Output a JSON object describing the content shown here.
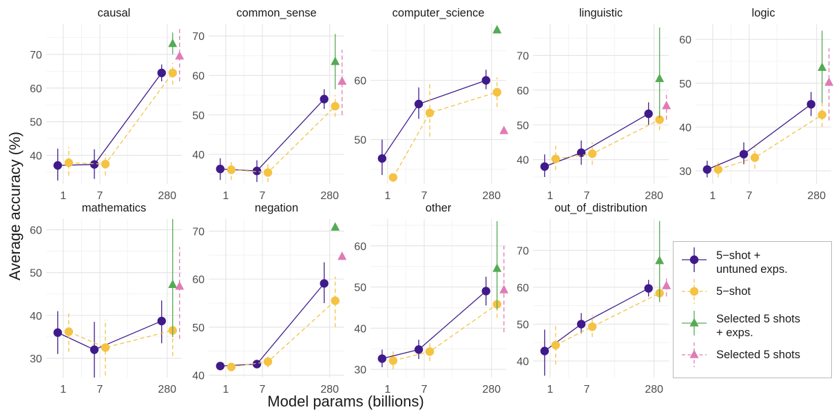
{
  "ylabel": "Average accuracy (%)",
  "xlabel": "Model params (billions)",
  "colors": {
    "five_shot_untuned": "#3f1a8a",
    "five_shot": "#f5c242",
    "selected_exps": "#55aa55",
    "selected": "#e07bb5"
  },
  "legend": {
    "items": [
      {
        "label": "5−shot +\nuntuned exps.",
        "series": "five_shot_untuned"
      },
      {
        "label": "5−shot",
        "series": "five_shot"
      },
      {
        "label": "Selected 5 shots\n+ exps.",
        "series": "selected_exps"
      },
      {
        "label": "Selected 5 shots",
        "series": "selected"
      }
    ]
  },
  "chart_data": [
    {
      "type": "line",
      "title": "causal",
      "categories": [
        "1",
        "7",
        "280"
      ],
      "yticks": [
        40,
        50,
        60,
        70
      ],
      "ylim": [
        31.5,
        79
      ],
      "series": [
        {
          "name": "5−shot + untuned exps.",
          "values": [
            37.0,
            37.3,
            64.5
          ],
          "lower": [
            32.5,
            33.0,
            62.0
          ],
          "upper": [
            42.0,
            41.8,
            67.0
          ]
        },
        {
          "name": "5−shot",
          "values": [
            37.8,
            37.4,
            64.5
          ],
          "lower": [
            34.0,
            34.0,
            61.0
          ],
          "upper": [
            42.5,
            40.5,
            67.5
          ]
        },
        {
          "name": "Selected 5 shots + exps.",
          "values": [
            null,
            null,
            73.2
          ],
          "lower": [
            null,
            null,
            70.0
          ],
          "upper": [
            null,
            null,
            76.5
          ]
        },
        {
          "name": "Selected 5 shots",
          "values": [
            null,
            null,
            69.5
          ],
          "lower": [
            null,
            null,
            62.0
          ],
          "upper": [
            null,
            null,
            78.0
          ]
        }
      ]
    },
    {
      "type": "line",
      "title": "common_sense",
      "categories": [
        "1",
        "7",
        "280"
      ],
      "yticks": [
        40,
        50,
        60,
        70
      ],
      "ylim": [
        32.5,
        73
      ],
      "series": [
        {
          "name": "5−shot + untuned exps.",
          "values": [
            36.3,
            35.8,
            54.0
          ],
          "lower": [
            33.5,
            33.0,
            51.5
          ],
          "upper": [
            39.0,
            38.5,
            56.5
          ]
        },
        {
          "name": "5−shot",
          "values": [
            36.1,
            35.4,
            52.2
          ],
          "lower": [
            33.5,
            33.0,
            49.5
          ],
          "upper": [
            38.8,
            38.0,
            55.0
          ]
        },
        {
          "name": "Selected 5 shots + exps.",
          "values": [
            null,
            null,
            63.5
          ],
          "lower": [
            null,
            null,
            56.5
          ],
          "upper": [
            null,
            null,
            70.5
          ]
        },
        {
          "name": "Selected 5 shots",
          "values": [
            null,
            null,
            58.5
          ],
          "lower": [
            null,
            null,
            50.0
          ],
          "upper": [
            null,
            null,
            66.5
          ]
        }
      ]
    },
    {
      "type": "line",
      "title": "computer_science",
      "categories": [
        "1",
        "7",
        "280"
      ],
      "yticks": [
        50,
        60
      ],
      "ylim": [
        42.5,
        69.5
      ],
      "series": [
        {
          "name": "5−shot + untuned exps.",
          "values": [
            46.8,
            56.0,
            60.0
          ],
          "lower": [
            44.0,
            53.5,
            58.5
          ],
          "upper": [
            50.0,
            58.8,
            61.8
          ]
        },
        {
          "name": "5−shot",
          "values": [
            43.6,
            54.5,
            58.0
          ],
          "lower": [
            43.6,
            50.5,
            55.5
          ],
          "upper": [
            43.6,
            59.5,
            60.5
          ]
        },
        {
          "name": "Selected 5 shots + exps.",
          "values": [
            null,
            null,
            68.5
          ],
          "lower": [
            null,
            null,
            null
          ],
          "upper": [
            null,
            null,
            null
          ]
        },
        {
          "name": "Selected 5 shots",
          "values": [
            null,
            null,
            51.5
          ],
          "lower": [
            null,
            null,
            null
          ],
          "upper": [
            null,
            null,
            null
          ]
        }
      ]
    },
    {
      "type": "line",
      "title": "linguistic",
      "categories": [
        "1",
        "7",
        "280"
      ],
      "yticks": [
        40,
        50,
        60,
        70
      ],
      "ylim": [
        33,
        79
      ],
      "series": [
        {
          "name": "5−shot + untuned exps.",
          "values": [
            38.0,
            42.0,
            53.2
          ],
          "lower": [
            35.0,
            38.5,
            50.0
          ],
          "upper": [
            41.5,
            45.5,
            56.5
          ]
        },
        {
          "name": "5−shot",
          "values": [
            40.2,
            41.7,
            51.5
          ],
          "lower": [
            37.0,
            38.5,
            48.5
          ],
          "upper": [
            44.0,
            45.0,
            54.5
          ]
        },
        {
          "name": "Selected 5 shots + exps.",
          "values": [
            null,
            null,
            63.3
          ],
          "lower": [
            null,
            null,
            52.0
          ],
          "upper": [
            null,
            null,
            78.0
          ]
        },
        {
          "name": "Selected 5 shots",
          "values": [
            null,
            null,
            55.5
          ],
          "lower": [
            null,
            null,
            51.5
          ],
          "upper": [
            null,
            null,
            59.5
          ]
        }
      ]
    },
    {
      "type": "line",
      "title": "logic",
      "categories": [
        "1",
        "7",
        "280"
      ],
      "yticks": [
        30,
        40,
        50,
        60
      ],
      "ylim": [
        27,
        63.5
      ],
      "series": [
        {
          "name": "5−shot + untuned exps.",
          "values": [
            30.3,
            33.8,
            45.2
          ],
          "lower": [
            28.5,
            31.5,
            42.5
          ],
          "upper": [
            32.3,
            36.5,
            48.0
          ]
        },
        {
          "name": "5−shot",
          "values": [
            30.3,
            33.0,
            42.8
          ],
          "lower": [
            28.5,
            30.5,
            40.0
          ],
          "upper": [
            32.0,
            35.5,
            45.5
          ]
        },
        {
          "name": "Selected 5 shots + exps.",
          "values": [
            null,
            null,
            53.6
          ],
          "lower": [
            null,
            null,
            45.5
          ],
          "upper": [
            null,
            null,
            62.0
          ]
        },
        {
          "name": "Selected 5 shots",
          "values": [
            null,
            null,
            50.2
          ],
          "lower": [
            null,
            null,
            41.5
          ],
          "upper": [
            null,
            null,
            58.0
          ]
        }
      ]
    },
    {
      "type": "line",
      "title": "mathematics",
      "categories": [
        "1",
        "7",
        "280"
      ],
      "yticks": [
        30,
        40,
        50,
        60
      ],
      "ylim": [
        25.5,
        62.5
      ],
      "series": [
        {
          "name": "5−shot + untuned exps.",
          "values": [
            36.0,
            32.0,
            38.7
          ],
          "lower": [
            31.0,
            25.5,
            33.5
          ],
          "upper": [
            41.0,
            38.5,
            43.5
          ]
        },
        {
          "name": "5−shot",
          "values": [
            36.2,
            32.5,
            36.5
          ],
          "lower": [
            31.5,
            26.0,
            30.5
          ],
          "upper": [
            41.0,
            39.0,
            42.5
          ]
        },
        {
          "name": "Selected 5 shots + exps.",
          "values": [
            null,
            null,
            47.2
          ],
          "lower": [
            null,
            null,
            35.0
          ],
          "upper": [
            null,
            null,
            62.5
          ]
        },
        {
          "name": "Selected 5 shots",
          "values": [
            null,
            null,
            46.8
          ],
          "lower": [
            null,
            null,
            34.5
          ],
          "upper": [
            null,
            null,
            56.0
          ]
        }
      ]
    },
    {
      "type": "line",
      "title": "negation",
      "categories": [
        "1",
        "7",
        "280"
      ],
      "yticks": [
        40,
        50,
        60,
        70
      ],
      "ylim": [
        39.5,
        72.5
      ],
      "series": [
        {
          "name": "5−shot + untuned exps.",
          "values": [
            41.9,
            42.3,
            59.1
          ],
          "lower": [
            41.2,
            41.6,
            55.0
          ],
          "upper": [
            42.6,
            43.0,
            63.5
          ]
        },
        {
          "name": "5−shot",
          "values": [
            41.7,
            42.8,
            55.5
          ],
          "lower": [
            41.0,
            41.6,
            50.0
          ],
          "upper": [
            42.4,
            44.0,
            60.5
          ]
        },
        {
          "name": "Selected 5 shots + exps.",
          "values": [
            null,
            null,
            70.8
          ],
          "lower": [
            null,
            null,
            null
          ],
          "upper": [
            null,
            null,
            null
          ]
        },
        {
          "name": "Selected 5 shots",
          "values": [
            null,
            null,
            64.7
          ],
          "lower": [
            null,
            null,
            null
          ],
          "upper": [
            null,
            null,
            null
          ]
        }
      ]
    },
    {
      "type": "line",
      "title": "other",
      "categories": [
        "1",
        "7",
        "280"
      ],
      "yticks": [
        30,
        40,
        50,
        60
      ],
      "ylim": [
        28,
        66.5
      ],
      "series": [
        {
          "name": "5−shot + untuned exps.",
          "values": [
            32.6,
            34.8,
            49.0
          ],
          "lower": [
            30.5,
            32.5,
            45.5
          ],
          "upper": [
            34.8,
            37.2,
            52.5
          ]
        },
        {
          "name": "5−shot",
          "values": [
            32.1,
            34.3,
            45.8
          ],
          "lower": [
            30.0,
            32.0,
            42.5
          ],
          "upper": [
            34.5,
            36.8,
            49.0
          ]
        },
        {
          "name": "Selected 5 shots + exps.",
          "values": [
            null,
            null,
            54.5
          ],
          "lower": [
            null,
            null,
            44.5
          ],
          "upper": [
            null,
            null,
            66.0
          ]
        },
        {
          "name": "Selected 5 shots",
          "values": [
            null,
            null,
            49.3
          ],
          "lower": [
            null,
            null,
            39.0
          ],
          "upper": [
            null,
            null,
            60.0
          ]
        }
      ]
    },
    {
      "type": "line",
      "title": "out_of_distribution",
      "categories": [
        "1",
        "7",
        "280"
      ],
      "yticks": [
        40,
        50,
        60,
        70
      ],
      "ylim": [
        35.5,
        78.5
      ],
      "series": [
        {
          "name": "5−shot + untuned exps.",
          "values": [
            42.7,
            50.0,
            59.7
          ],
          "lower": [
            36.0,
            47.5,
            57.5
          ],
          "upper": [
            48.5,
            53.0,
            62.0
          ]
        },
        {
          "name": "5−shot",
          "values": [
            44.3,
            49.3,
            58.4
          ],
          "lower": [
            39.0,
            46.5,
            56.0
          ],
          "upper": [
            50.0,
            52.5,
            61.0
          ]
        },
        {
          "name": "Selected 5 shots + exps.",
          "values": [
            null,
            null,
            67.2
          ],
          "lower": [
            null,
            null,
            56.0
          ],
          "upper": [
            null,
            null,
            78.0
          ]
        },
        {
          "name": "Selected 5 shots",
          "values": [
            null,
            null,
            60.4
          ],
          "lower": [
            null,
            null,
            57.5
          ],
          "upper": [
            null,
            null,
            63.0
          ]
        }
      ]
    }
  ]
}
